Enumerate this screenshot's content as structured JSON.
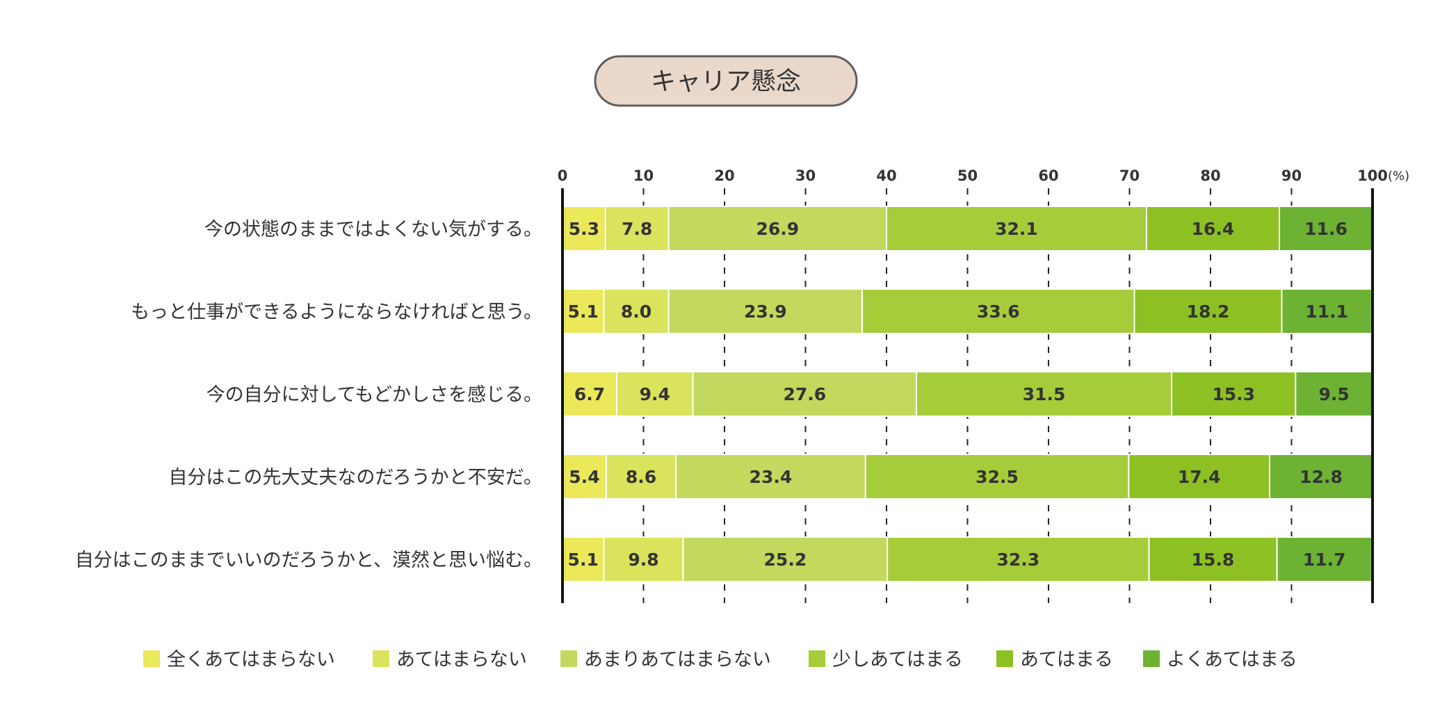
{
  "chart_data": {
    "type": "bar",
    "orientation": "horizontal-stacked",
    "title": "キャリア懸念",
    "unit_label": "(%)",
    "xlim": [
      0,
      100
    ],
    "ticks": [
      0,
      10,
      20,
      30,
      40,
      50,
      60,
      70,
      80,
      90,
      100
    ],
    "categories": [
      "今の状態のままではよくない気がする。",
      "もっと仕事ができるようにならなければと思う。",
      "今の自分に対してもどかしさを感じる。",
      "自分はこの先大丈夫なのだろうかと不安だ。",
      "自分はこのままでいいのだろうかと、漠然と思い悩む。"
    ],
    "series": [
      {
        "name": "全くあてはまらない",
        "color": "#ebe85a",
        "values": [
          5.3,
          5.1,
          6.7,
          5.4,
          5.1
        ]
      },
      {
        "name": "あてはまらない",
        "color": "#d9e35b",
        "values": [
          7.8,
          8.0,
          9.4,
          8.6,
          9.8
        ]
      },
      {
        "name": "あまりあてはまらない",
        "color": "#c2d95d",
        "values": [
          26.9,
          23.9,
          27.6,
          23.4,
          25.2
        ]
      },
      {
        "name": "少しあてはまる",
        "color": "#a6cc3a",
        "values": [
          32.1,
          33.6,
          31.5,
          32.5,
          32.3
        ]
      },
      {
        "name": "あてはまる",
        "color": "#8dc123",
        "values": [
          16.4,
          18.2,
          15.3,
          17.4,
          15.8
        ]
      },
      {
        "name": "よくあてはまる",
        "color": "#6db233",
        "values": [
          11.6,
          11.1,
          9.5,
          12.8,
          11.7
        ]
      }
    ],
    "title_box_fill": "#ead9cb",
    "title_box_stroke": "#5e5e5e",
    "text_color": "#333333",
    "grid": "dashed-vertical",
    "legend": "bottom"
  }
}
